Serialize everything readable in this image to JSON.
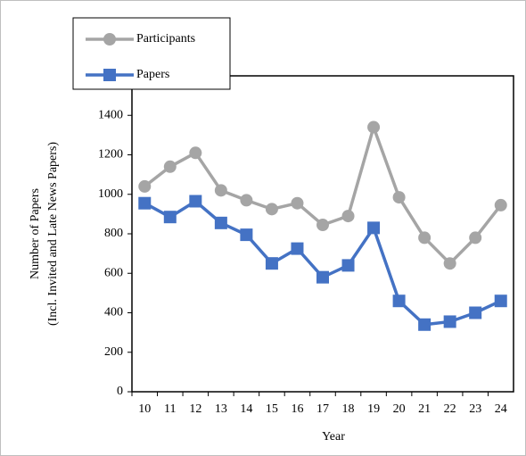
{
  "chart_data": {
    "type": "line",
    "x_label": "Year",
    "y_label": [
      "Number of Papers",
      "(Incl. Invited and Late News Papers)"
    ],
    "categories": [
      "10",
      "11",
      "12",
      "13",
      "14",
      "15",
      "16",
      "17",
      "18",
      "19",
      "20",
      "21",
      "22",
      "23",
      "24"
    ],
    "series": [
      {
        "name": "Participants",
        "color": "#a5a5a5",
        "marker": "circle",
        "values": [
          1040,
          1140,
          1210,
          1020,
          970,
          925,
          955,
          845,
          890,
          1340,
          985,
          780,
          650,
          780,
          945
        ]
      },
      {
        "name": "Papers",
        "color": "#4472c4",
        "marker": "square",
        "values": [
          955,
          885,
          965,
          855,
          795,
          650,
          725,
          580,
          640,
          830,
          460,
          340,
          355,
          400,
          460
        ]
      }
    ],
    "ylim": [
      0,
      1600
    ],
    "yticks": [
      0,
      200,
      400,
      600,
      800,
      1000,
      1200,
      1400
    ],
    "grid": false
  }
}
